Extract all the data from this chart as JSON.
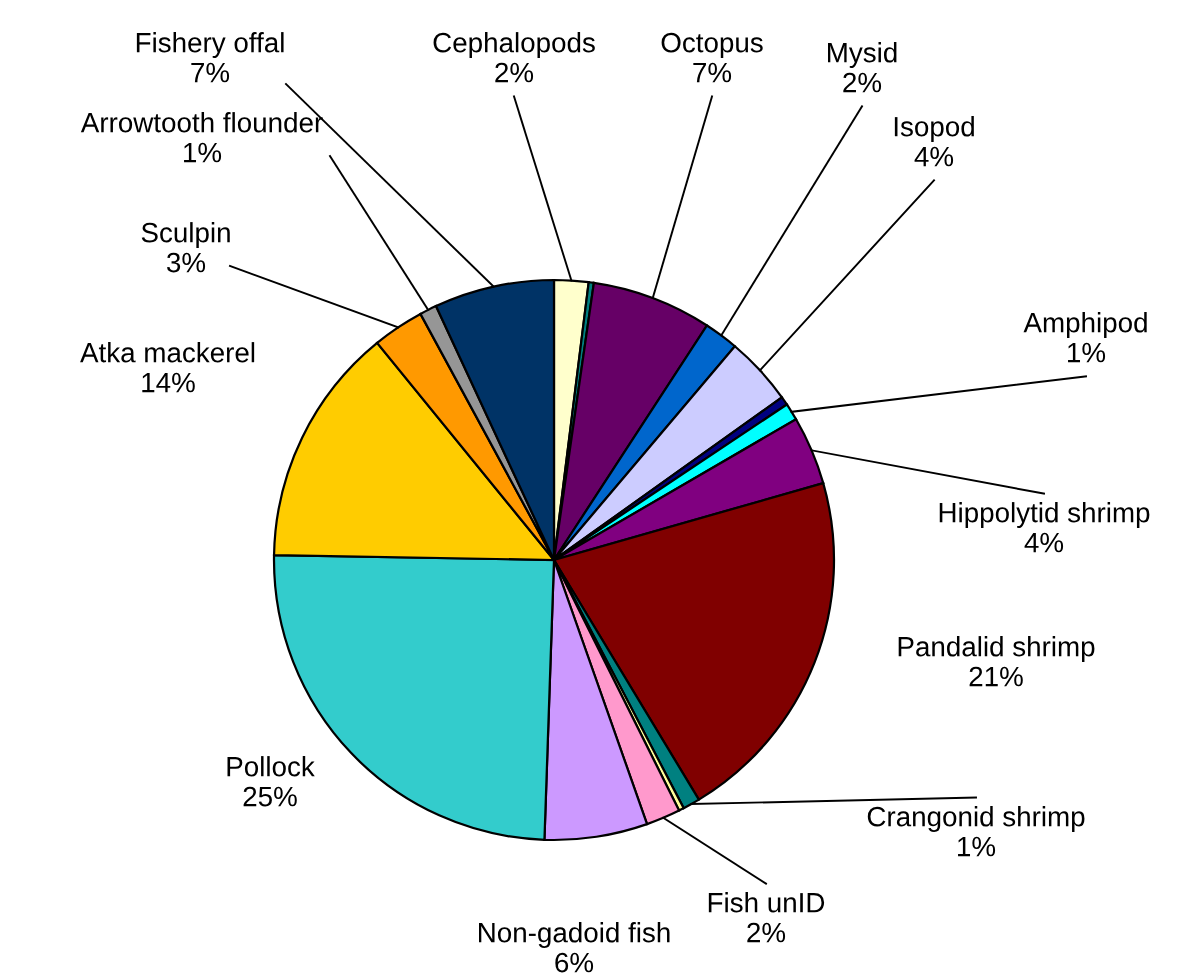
{
  "chart_data": {
    "type": "pie",
    "categories": [
      "Cephalopods",
      null,
      "Octopus",
      "Mysid",
      "Isopod",
      null,
      "Amphipod",
      "Hippolytid shrimp",
      "Pandalid shrimp",
      "Crangonid shrimp",
      null,
      "Fish unID",
      "Non-gadoid fish",
      "Pollock",
      "Atka mackerel",
      "Sculpin",
      "Arrowtooth flounder",
      "Fishery offal"
    ],
    "values": [
      2,
      0.3,
      7,
      2,
      4,
      0.5,
      1,
      4,
      21,
      1,
      0.3,
      2,
      6,
      25,
      14,
      3,
      1,
      7
    ],
    "colors": [
      "#ffffcc",
      "#008080",
      "#660066",
      "#0066cc",
      "#ccccff",
      "#000080",
      "#00ffff",
      "#800080",
      "#800000",
      "#008080",
      "#ffff99",
      "#ff99cc",
      "#cc99ff",
      "#33cccc",
      "#ffcc00",
      "#ff9900",
      "#969696",
      "#003366"
    ],
    "value_labels": [
      "2%",
      null,
      "7%",
      "2%",
      "4%",
      null,
      "1%",
      "4%",
      "21%",
      "1%",
      null,
      "2%",
      "6%",
      "25%",
      "14%",
      "3%",
      "1%",
      "7%"
    ]
  }
}
